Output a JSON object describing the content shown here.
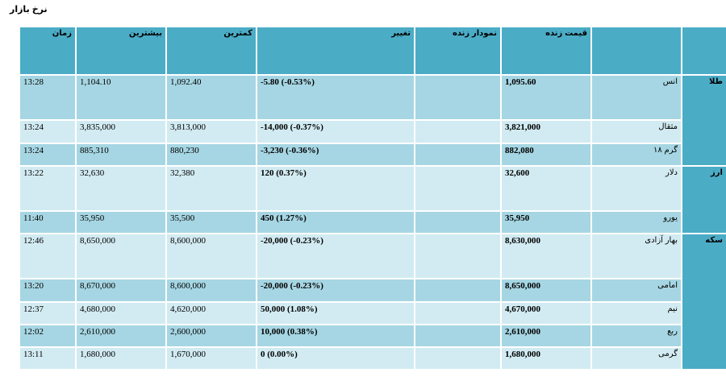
{
  "page": {
    "title": "نرخ بازار"
  },
  "columns": {
    "category": "",
    "name": "",
    "live_price": "قیمت زنده",
    "live_chart": "نمودار زنده",
    "change": "تغییر",
    "low": "کمترین",
    "high": "بیشترین",
    "time": "زمان"
  },
  "groups": [
    {
      "label": "طلا",
      "rows": [
        {
          "name": "انس",
          "price": "1,095.60",
          "change": "-5.80 (-0.53%)",
          "low": "1,092.40",
          "high": "1,104.10",
          "time": "13:28"
        },
        {
          "name": "مثقال",
          "price": "3,821,000",
          "change": "-14,000 (-0.37%)",
          "low": "3,813,000",
          "high": "3,835,000",
          "time": "13:24"
        },
        {
          "name": "گرم ۱۸",
          "price": "882,080",
          "change": "-3,230 (-0.36%)",
          "low": "880,230",
          "high": "885,310",
          "time": "13:24"
        }
      ]
    },
    {
      "label": "ارز",
      "rows": [
        {
          "name": "دلار",
          "price": "32,600",
          "change": "120 (0.37%)",
          "low": "32,380",
          "high": "32,630",
          "time": "13:22"
        },
        {
          "name": "یورو",
          "price": "35,950",
          "change": "450 (1.27%)",
          "low": "35,500",
          "high": "35,950",
          "time": "11:40"
        }
      ]
    },
    {
      "label": "سکه",
      "rows": [
        {
          "name": "بهار آزادی",
          "price": "8,630,000",
          "change": "-20,000 (-0.23%)",
          "low": "8,600,000",
          "high": "8,650,000",
          "time": "12:46"
        },
        {
          "name": "امامی",
          "price": "8,650,000",
          "change": "-20,000 (-0.23%)",
          "low": "8,600,000",
          "high": "8,670,000",
          "time": "13:20"
        },
        {
          "name": "نیم",
          "price": "4,670,000",
          "change": "50,000 (1.08%)",
          "low": "4,620,000",
          "high": "4,680,000",
          "time": "12:37"
        },
        {
          "name": "ربع",
          "price": "2,610,000",
          "change": "10,000 (0.38%)",
          "low": "2,600,000",
          "high": "2,610,000",
          "time": "12:02"
        },
        {
          "name": "گرمی",
          "price": "1,680,000",
          "change": "0 (0.00%)",
          "low": "1,670,000",
          "high": "1,680,000",
          "time": "13:11"
        }
      ]
    }
  ],
  "colors": {
    "header": "#4bacc6",
    "row_dark": "#a6d6e3",
    "row_light": "#d2ebf2"
  }
}
